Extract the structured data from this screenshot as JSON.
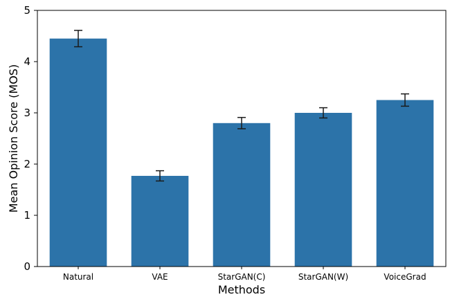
{
  "chart_data": {
    "type": "bar",
    "categories": [
      "Natural",
      "VAE",
      "StarGAN(C)",
      "StarGAN(W)",
      "VoiceGrad"
    ],
    "values": [
      4.45,
      1.77,
      2.8,
      3.0,
      3.25
    ],
    "errors": [
      0.16,
      0.1,
      0.11,
      0.1,
      0.12
    ],
    "xlabel": "Methods",
    "ylabel": "Mean Opinion Score (MOS)",
    "ylim": [
      0,
      5
    ],
    "yticks": [
      "0",
      "1",
      "2",
      "3",
      "4",
      "5"
    ],
    "bar_color": "#2c73a9",
    "grid": false,
    "legend": "none"
  }
}
